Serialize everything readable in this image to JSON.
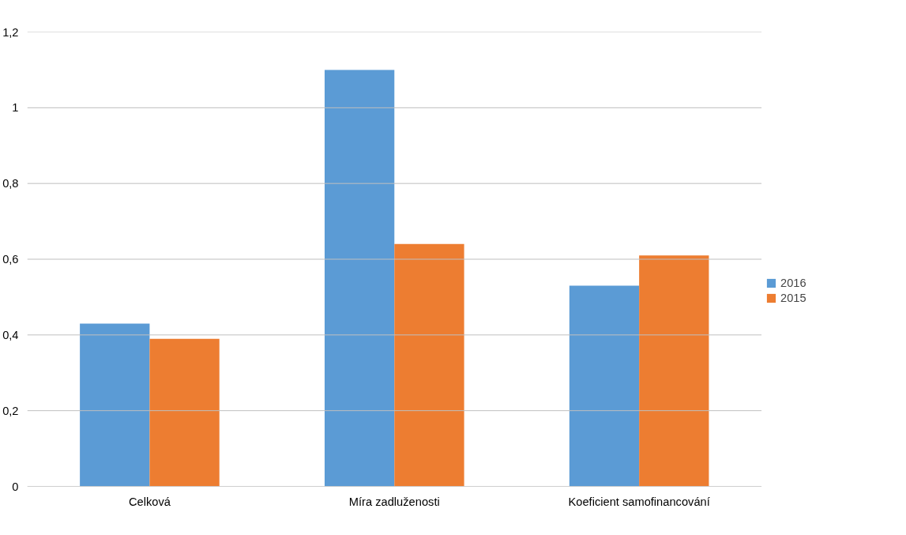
{
  "chart_data": {
    "type": "bar",
    "categories": [
      "Celková",
      "Míra zadluženosti",
      "Koeficient samofinancování"
    ],
    "series": [
      {
        "name": "2016",
        "color": "#5b9bd5",
        "values": [
          0.43,
          1.1,
          0.53
        ]
      },
      {
        "name": "2015",
        "color": "#ed7d31",
        "values": [
          0.39,
          0.64,
          0.61
        ]
      }
    ],
    "ylim": [
      0,
      1.2
    ],
    "yticks": [
      0,
      {
        "value": 0.2,
        "label": "0,2"
      },
      {
        "value": 0.4,
        "label": "0,4"
      },
      {
        "value": 0.6,
        "label": "0,6"
      },
      {
        "value": 0.8,
        "label": "0,8"
      },
      1,
      {
        "value": 1.2,
        "label": "1,2"
      }
    ],
    "grid": "y",
    "legend": "right"
  }
}
